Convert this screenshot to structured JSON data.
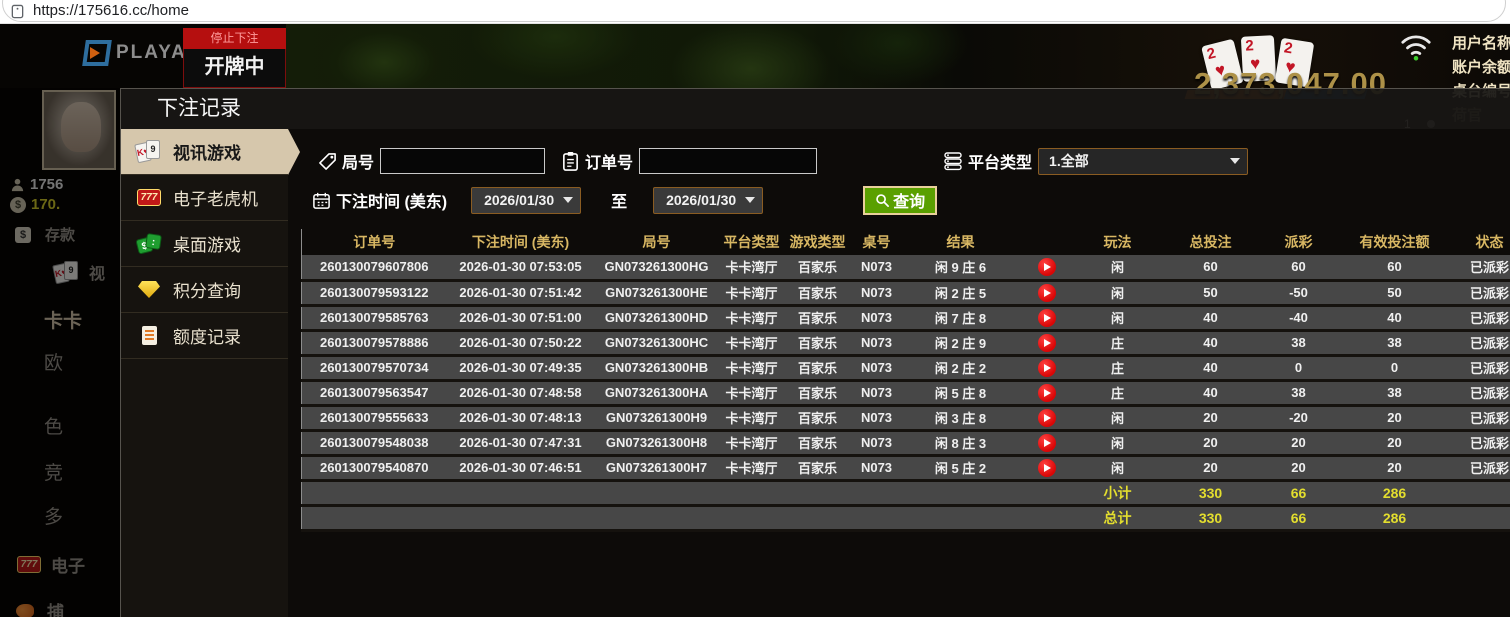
{
  "browser": {
    "url": "https://175616.cc/home"
  },
  "colors": {
    "accent_gold": "#d8b763",
    "summary_yellow": "#e3de2e",
    "payout_win_red": "#c02a3a",
    "payout_lose_green": "#43d22b",
    "status_green": "#2ec72e",
    "active_tab_bg": "#d6c7ac",
    "search_button_green": "#5aa000"
  },
  "top": {
    "logo_text": "PLAYACE",
    "stop_banner": "停止下注",
    "game_state": "开牌中",
    "cards": [
      "2",
      "2",
      "2"
    ],
    "card_suit": "♥",
    "big_balance": "2,373,047.00",
    "account_labels": [
      "用户名称",
      "账户余额",
      "桌台编号",
      "荷官"
    ],
    "side_nums": [
      "1",
      "2"
    ]
  },
  "left_panel": {
    "user_id": "1756",
    "balance": "170.",
    "items": [
      {
        "label": "存款",
        "icon": "deposit-icon"
      },
      {
        "label": "视",
        "icon": "cards-icon"
      },
      {
        "label": "卡卡",
        "icon": ""
      },
      {
        "label": "欧",
        "icon": ""
      },
      {
        "label": "色",
        "icon": ""
      },
      {
        "label": "竞",
        "icon": ""
      },
      {
        "label": "多",
        "icon": ""
      },
      {
        "label": "电子",
        "icon": "slot-777-icon"
      },
      {
        "label": "捕",
        "icon": "fish-icon"
      }
    ]
  },
  "modal": {
    "title": "下注记录",
    "menu": [
      {
        "name": "tab-live-games",
        "label": "视讯游戏",
        "icon": "video-cards-icon",
        "active": true
      },
      {
        "name": "tab-slots",
        "label": "电子老虎机",
        "icon": "slot-777-icon",
        "active": false
      },
      {
        "name": "tab-table-games",
        "label": "桌面游戏",
        "icon": "table-games-icon",
        "active": false
      },
      {
        "name": "tab-points-query",
        "label": "积分查询",
        "icon": "points-diamond-icon",
        "active": false
      },
      {
        "name": "tab-quota-record",
        "label": "额度记录",
        "icon": "quota-record-icon",
        "active": false
      }
    ],
    "filters": {
      "round_label": "局号",
      "round_value": "",
      "order_label": "订单号",
      "order_value": "",
      "platform_label": "平台类型",
      "platform_value": "1.全部",
      "time_label": "下注时间 (美东)",
      "date_from": "2026/01/30",
      "to_label": "至",
      "date_to": "2026/01/30",
      "search_label": "查询"
    },
    "table": {
      "headers": [
        "订单号",
        "下注时间 (美东)",
        "局号",
        "平台类型",
        "游戏类型",
        "桌号",
        "结果",
        "",
        "玩法",
        "总投注",
        "派彩",
        "有效投注额",
        "状态"
      ],
      "rows": [
        {
          "order_no": "260130079607806",
          "time": "2026-01-30 07:53:05",
          "round": "GN073261300HG",
          "platform": "卡卡湾厅",
          "game": "百家乐",
          "table_no": "N073",
          "result": "闲 9 庄 6",
          "bet": "闲",
          "total": "60",
          "payout": "60",
          "payout_state": "win",
          "valid": "60",
          "status": "已派彩"
        },
        {
          "order_no": "260130079593122",
          "time": "2026-01-30 07:51:42",
          "round": "GN073261300HE",
          "platform": "卡卡湾厅",
          "game": "百家乐",
          "table_no": "N073",
          "result": "闲 2 庄 5",
          "bet": "闲",
          "total": "50",
          "payout": "-50",
          "payout_state": "lose",
          "valid": "50",
          "status": "已派彩"
        },
        {
          "order_no": "260130079585763",
          "time": "2026-01-30 07:51:00",
          "round": "GN073261300HD",
          "platform": "卡卡湾厅",
          "game": "百家乐",
          "table_no": "N073",
          "result": "闲 7 庄 8",
          "bet": "闲",
          "total": "40",
          "payout": "-40",
          "payout_state": "lose",
          "valid": "40",
          "status": "已派彩"
        },
        {
          "order_no": "260130079578886",
          "time": "2026-01-30 07:50:22",
          "round": "GN073261300HC",
          "platform": "卡卡湾厅",
          "game": "百家乐",
          "table_no": "N073",
          "result": "闲 2 庄 9",
          "bet": "庄",
          "total": "40",
          "payout": "38",
          "payout_state": "win",
          "valid": "38",
          "status": "已派彩"
        },
        {
          "order_no": "260130079570734",
          "time": "2026-01-30 07:49:35",
          "round": "GN073261300HB",
          "platform": "卡卡湾厅",
          "game": "百家乐",
          "table_no": "N073",
          "result": "闲 2 庄 2",
          "bet": "庄",
          "total": "40",
          "payout": "0",
          "payout_state": "even",
          "valid": "0",
          "status": "已派彩"
        },
        {
          "order_no": "260130079563547",
          "time": "2026-01-30 07:48:58",
          "round": "GN073261300HA",
          "platform": "卡卡湾厅",
          "game": "百家乐",
          "table_no": "N073",
          "result": "闲 5 庄 8",
          "bet": "庄",
          "total": "40",
          "payout": "38",
          "payout_state": "win",
          "valid": "38",
          "status": "已派彩"
        },
        {
          "order_no": "260130079555633",
          "time": "2026-01-30 07:48:13",
          "round": "GN073261300H9",
          "platform": "卡卡湾厅",
          "game": "百家乐",
          "table_no": "N073",
          "result": "闲 3 庄 8",
          "bet": "闲",
          "total": "20",
          "payout": "-20",
          "payout_state": "lose",
          "valid": "20",
          "status": "已派彩"
        },
        {
          "order_no": "260130079548038",
          "time": "2026-01-30 07:47:31",
          "round": "GN073261300H8",
          "platform": "卡卡湾厅",
          "game": "百家乐",
          "table_no": "N073",
          "result": "闲 8 庄 3",
          "bet": "闲",
          "total": "20",
          "payout": "20",
          "payout_state": "win",
          "valid": "20",
          "status": "已派彩"
        },
        {
          "order_no": "260130079540870",
          "time": "2026-01-30 07:46:51",
          "round": "GN073261300H7",
          "platform": "卡卡湾厅",
          "game": "百家乐",
          "table_no": "N073",
          "result": "闲 5 庄 2",
          "bet": "闲",
          "total": "20",
          "payout": "20",
          "payout_state": "win",
          "valid": "20",
          "status": "已派彩"
        }
      ],
      "subtotal": {
        "label": "小计",
        "total": "330",
        "payout": "66",
        "valid": "286"
      },
      "grand_total": {
        "label": "总计",
        "total": "330",
        "payout": "66",
        "valid": "286"
      }
    }
  }
}
